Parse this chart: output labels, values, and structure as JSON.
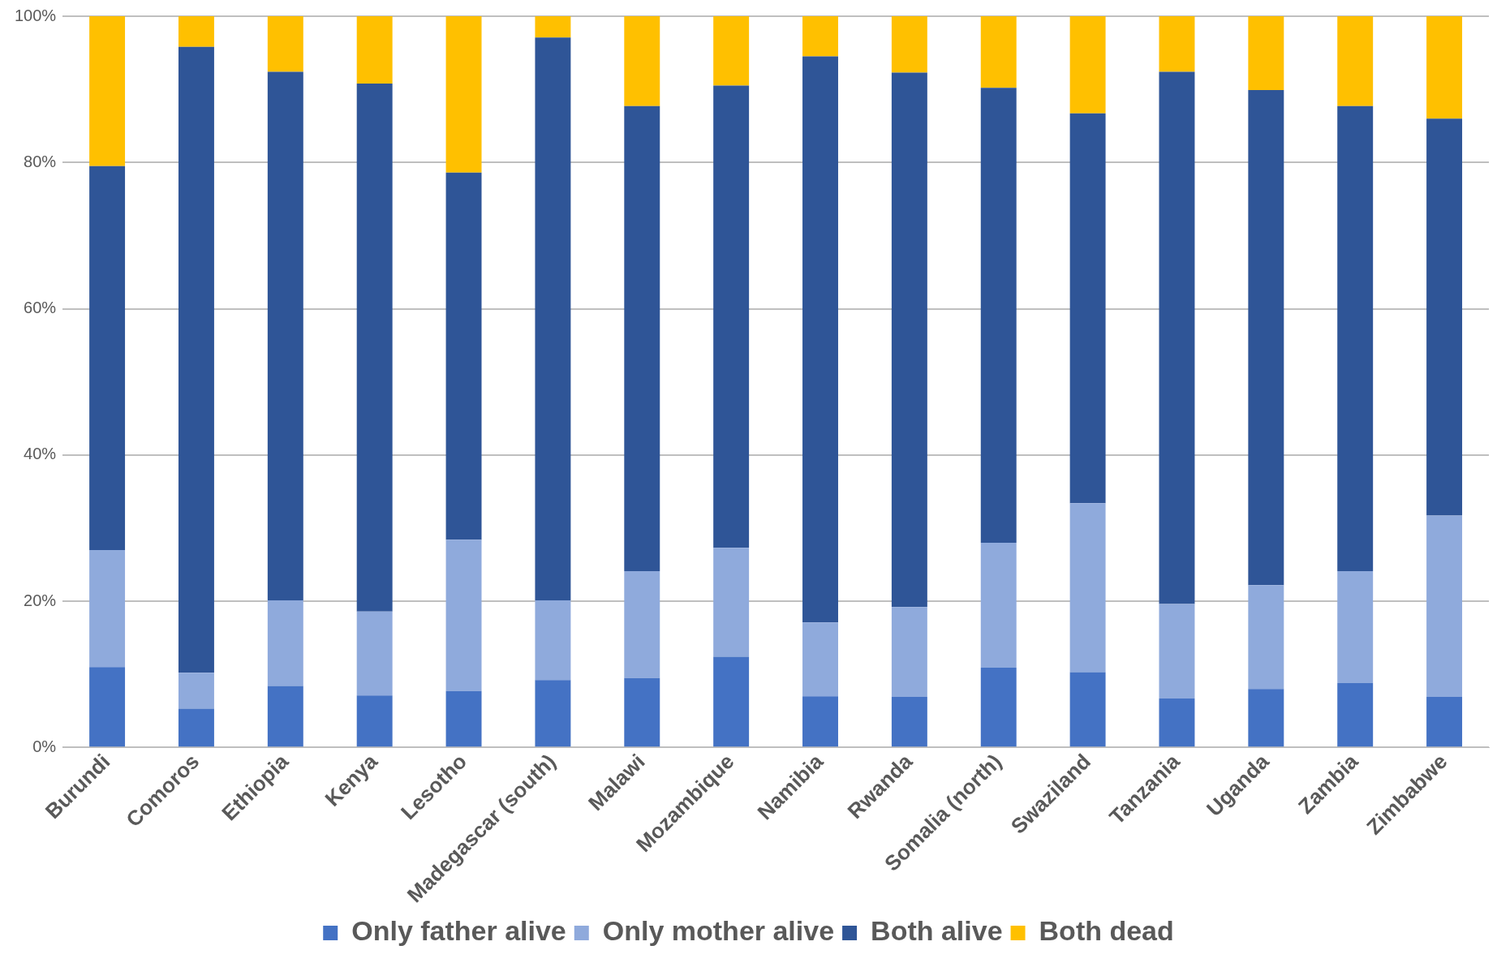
{
  "chart_data": {
    "type": "bar",
    "stacked": true,
    "categories": [
      "Burundi",
      "Comoros",
      "Ethiopia",
      "Kenya",
      "Lesotho",
      "Madegascar (south)",
      "Malawi",
      "Mozambique",
      "Namibia",
      "Rwanda",
      "Somalia (north)",
      "Swaziland",
      "Tanzania",
      "Uganda",
      "Zambia",
      "Zimbabwe"
    ],
    "series": [
      {
        "name": "Only father alive",
        "color": "#4472c4",
        "values": [
          11,
          5.3,
          8.4,
          7.1,
          7.7,
          9.2,
          9.5,
          12.4,
          7,
          6.9,
          10.9,
          10.3,
          6.7,
          8,
          8.8,
          6.9
        ]
      },
      {
        "name": "Only mother alive",
        "color": "#8faadc",
        "values": [
          16,
          4.9,
          11.7,
          11.5,
          20.7,
          10.9,
          14.6,
          14.9,
          10.1,
          12.3,
          17.1,
          23.1,
          12.9,
          14.2,
          15.3,
          24.8
        ]
      },
      {
        "name": "Both alive",
        "color": "#2f5597",
        "values": [
          52.5,
          85.6,
          72.3,
          72.2,
          50.2,
          77,
          63.6,
          63.2,
          77.4,
          73.1,
          62.2,
          53.3,
          72.8,
          67.7,
          63.6,
          54.3
        ]
      },
      {
        "name": "Both dead",
        "color": "#ffc000",
        "values": [
          20.5,
          4.2,
          7.6,
          9.2,
          21.4,
          2.9,
          12.3,
          9.5,
          5.5,
          7.7,
          9.8,
          13.3,
          7.6,
          10.1,
          12.3,
          14
        ]
      }
    ],
    "ylim": [
      0,
      100
    ],
    "yticks": [
      {
        "value": 0,
        "label": "0%"
      },
      {
        "value": 20,
        "label": "20%"
      },
      {
        "value": 40,
        "label": "40%"
      },
      {
        "value": 60,
        "label": "60%"
      },
      {
        "value": 80,
        "label": "80%"
      },
      {
        "value": 100,
        "label": "100%"
      }
    ],
    "grid": "y",
    "legend": "bottom"
  }
}
